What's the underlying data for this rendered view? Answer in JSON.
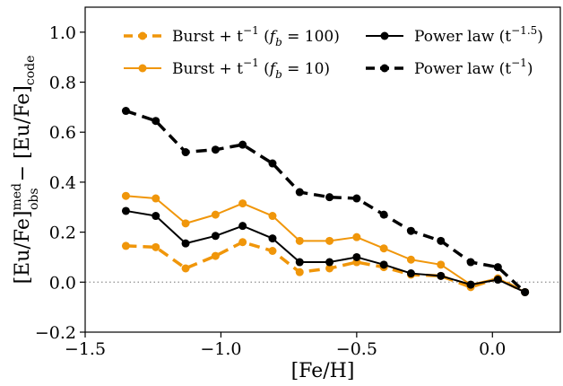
{
  "chart_data": {
    "type": "line",
    "xlabel": "[Fe/H]",
    "ylabel": {
      "prefix": "[Eu/Fe]",
      "sup": "med",
      "sub": "obs",
      "minus": " − [Eu/Fe]",
      "sub2": "code"
    },
    "xlim": [
      -1.5,
      0.25
    ],
    "ylim": [
      -0.2,
      1.1
    ],
    "xticks": [
      -1.5,
      -1.0,
      -0.5,
      0.0
    ],
    "xtick_labels": [
      "−1.5",
      "−1.0",
      "−0.5",
      "0.0"
    ],
    "yticks": [
      -0.2,
      0.0,
      0.2,
      0.4,
      0.6,
      0.8,
      1.0
    ],
    "ytick_labels": [
      "−0.2",
      "0.0",
      "0.2",
      "0.4",
      "0.6",
      "0.8",
      "1.0"
    ],
    "reference_line": {
      "y": 0.0,
      "style": "dotted",
      "color": "#999999"
    },
    "legend_position": "top",
    "x": [
      -1.35,
      -1.24,
      -1.13,
      -1.02,
      -0.92,
      -0.81,
      -0.71,
      -0.6,
      -0.5,
      -0.4,
      -0.3,
      -0.19,
      -0.08,
      0.02,
      0.12
    ],
    "series": [
      {
        "name": "Burst + t^{-1} (f_b = 100)",
        "legend": {
          "base": "Burst + t",
          "sup": "−1",
          "paren_pre": " (",
          "italic": "f",
          "sub": "b",
          "paren_post": " = 100)"
        },
        "color": "#f0960a",
        "dash": "dashed",
        "values": [
          0.145,
          0.14,
          0.055,
          0.105,
          0.16,
          0.125,
          0.04,
          0.055,
          0.08,
          0.06,
          0.03,
          0.025,
          -0.02,
          0.015,
          -0.04
        ]
      },
      {
        "name": "Burst + t^{-1} (f_b = 10)",
        "legend": {
          "base": "Burst + t",
          "sup": "−1",
          "paren_pre": " (",
          "italic": "f",
          "sub": "b",
          "paren_post": " = 10)"
        },
        "color": "#f0960a",
        "dash": "solid",
        "values": [
          0.345,
          0.335,
          0.235,
          0.27,
          0.315,
          0.265,
          0.165,
          0.165,
          0.18,
          0.135,
          0.09,
          0.07,
          -0.01,
          0.015,
          -0.04
        ]
      },
      {
        "name": "Power law (t^{-1.5})",
        "legend": {
          "base": "Power law (t",
          "sup": "−1.5",
          "paren_post": ")"
        },
        "color": "#000000",
        "dash": "solid",
        "values": [
          0.285,
          0.265,
          0.155,
          0.185,
          0.225,
          0.175,
          0.08,
          0.08,
          0.1,
          0.07,
          0.035,
          0.025,
          -0.01,
          0.01,
          -0.04
        ]
      },
      {
        "name": "Power law (t^{-1})",
        "legend": {
          "base": "Power law (t",
          "sup": "−1",
          "paren_post": ")"
        },
        "color": "#000000",
        "dash": "dashed",
        "values": [
          0.685,
          0.645,
          0.52,
          0.53,
          0.55,
          0.475,
          0.36,
          0.34,
          0.335,
          0.27,
          0.205,
          0.165,
          0.08,
          0.06,
          -0.04
        ]
      }
    ]
  }
}
